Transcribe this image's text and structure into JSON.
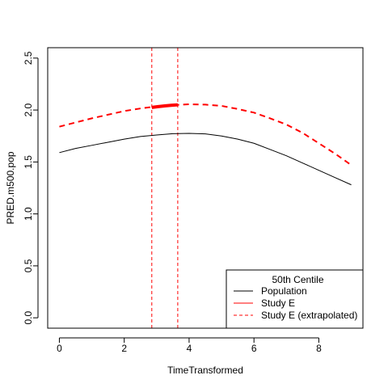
{
  "chart_data": {
    "type": "line",
    "xlabel": "TimeTransformed",
    "ylabel": "PRED.m500.pop",
    "xlim": [
      -0.36,
      9.36
    ],
    "ylim": [
      -0.1,
      2.6
    ],
    "x_ticks": [
      "0",
      "2",
      "4",
      "6",
      "8"
    ],
    "y_ticks": [
      "0.0",
      "0.5",
      "1.0",
      "1.5",
      "2.0",
      "2.5"
    ],
    "grid": false,
    "colors": {
      "population": "#000000",
      "study": "#ff0000"
    },
    "series": [
      {
        "name": "Population",
        "style": "solid",
        "x": [
          0,
          0.5,
          1,
          1.5,
          2,
          2.5,
          3,
          3.5,
          4,
          4.5,
          5,
          5.5,
          6,
          6.5,
          7,
          7.5,
          8,
          8.5,
          9
        ],
        "y": [
          1.59,
          1.63,
          1.66,
          1.69,
          1.72,
          1.745,
          1.76,
          1.772,
          1.775,
          1.77,
          1.75,
          1.72,
          1.68,
          1.62,
          1.56,
          1.49,
          1.42,
          1.35,
          1.28
        ]
      },
      {
        "name": "Study E",
        "style": "solid-thick",
        "x": [
          2.85,
          3.05,
          3.25,
          3.45,
          3.65
        ],
        "y": [
          2.025,
          2.033,
          2.04,
          2.046,
          2.05
        ]
      },
      {
        "name": "Study E (extrapolated)",
        "style": "dashed",
        "x": [
          0,
          0.5,
          1,
          1.5,
          2,
          2.5,
          3,
          3.5,
          4,
          4.5,
          5,
          5.5,
          6,
          6.5,
          7,
          7.5,
          8,
          8.5,
          9
        ],
        "y": [
          1.84,
          1.88,
          1.92,
          1.955,
          1.99,
          2.015,
          2.035,
          2.048,
          2.055,
          2.052,
          2.04,
          2.01,
          1.975,
          1.92,
          1.86,
          1.78,
          1.68,
          1.58,
          1.47
        ]
      }
    ],
    "vlines": [
      2.85,
      3.65
    ],
    "legend": {
      "position": "bottom-right",
      "title": "50th Centile",
      "entries": [
        "Population",
        "Study E",
        "Study E (extrapolated)"
      ]
    }
  }
}
